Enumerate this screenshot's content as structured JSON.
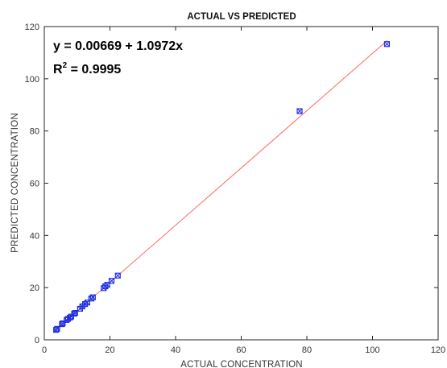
{
  "chart_data": {
    "type": "scatter",
    "title": "ACTUAL VS PREDICTED",
    "xlabel": "ACTUAL CONCENTRATION",
    "ylabel": "PREDICTED CONCENTRATION",
    "xlim": [
      0,
      120
    ],
    "ylim": [
      0,
      120
    ],
    "xticks": [
      0,
      20,
      40,
      60,
      80,
      100,
      120
    ],
    "yticks": [
      0,
      20,
      40,
      60,
      80,
      100,
      120
    ],
    "grid": false,
    "annotation": {
      "equation": "y = 0.00669 + 1.0972x",
      "r2_prefix": "R",
      "r2_sup": "2",
      "r2_value": " = 0.9995"
    },
    "fit_line": {
      "intercept": 0.00669,
      "slope": 1.0972,
      "x_range": [
        3.5,
        104.5
      ],
      "color": "#ff6666"
    },
    "marker_color": "#1f2fe0",
    "points": [
      {
        "x": 3.6,
        "y": 3.8
      },
      {
        "x": 3.9,
        "y": 4.2
      },
      {
        "x": 5.4,
        "y": 6.0
      },
      {
        "x": 5.6,
        "y": 6.3
      },
      {
        "x": 6.8,
        "y": 7.6
      },
      {
        "x": 7.2,
        "y": 8.0
      },
      {
        "x": 7.8,
        "y": 8.5
      },
      {
        "x": 8.2,
        "y": 8.9
      },
      {
        "x": 9.1,
        "y": 10.0
      },
      {
        "x": 9.4,
        "y": 10.3
      },
      {
        "x": 10.9,
        "y": 11.9
      },
      {
        "x": 11.6,
        "y": 12.8
      },
      {
        "x": 12.4,
        "y": 13.7
      },
      {
        "x": 13.1,
        "y": 14.3
      },
      {
        "x": 14.3,
        "y": 15.8
      },
      {
        "x": 14.8,
        "y": 16.3
      },
      {
        "x": 18.1,
        "y": 19.8
      },
      {
        "x": 18.6,
        "y": 20.5
      },
      {
        "x": 19.2,
        "y": 21.1
      },
      {
        "x": 20.5,
        "y": 22.6
      },
      {
        "x": 22.4,
        "y": 24.6
      },
      {
        "x": 77.8,
        "y": 87.6
      },
      {
        "x": 104.4,
        "y": 113.3
      }
    ]
  }
}
